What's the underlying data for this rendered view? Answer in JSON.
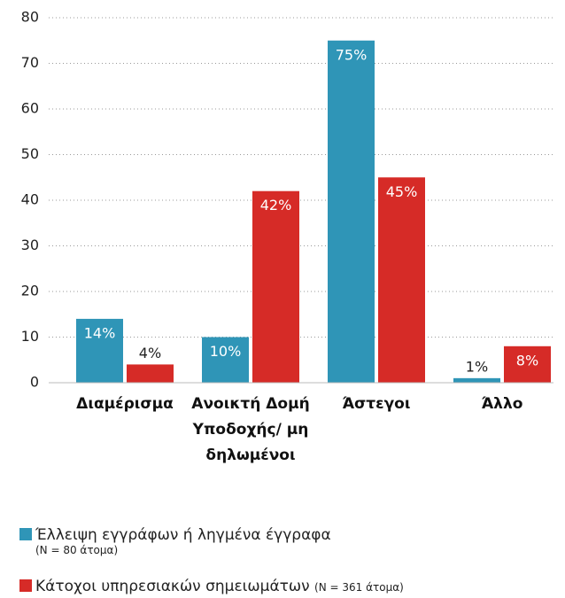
{
  "chart_data": {
    "type": "bar",
    "categories": [
      "Διαμέρισμα",
      "Ανοικτή Δομή Υποδοχής/ μη δηλωμένοι",
      "Άστεγοι",
      "Άλλο"
    ],
    "series": [
      {
        "name": "Έλλειψη εγγράφων ή ληγμένα έγγραφα",
        "note": "(N = 80 άτομα)",
        "color": "#2f95b7",
        "values": [
          14,
          10,
          75,
          1
        ],
        "value_labels": [
          "14%",
          "10%",
          "75%",
          "1%"
        ]
      },
      {
        "name": "Κάτοχοι υπηρεσιακών σημειωμάτων",
        "note": "(N = 361 άτομα)",
        "color": "#d62b27",
        "values": [
          4,
          42,
          45,
          8
        ],
        "value_labels": [
          "4%",
          "42%",
          "45%",
          "8%"
        ]
      }
    ],
    "ylim": [
      0,
      80
    ],
    "yticks": [
      0,
      10,
      20,
      30,
      40,
      50,
      60,
      70,
      80
    ],
    "grid": true
  }
}
